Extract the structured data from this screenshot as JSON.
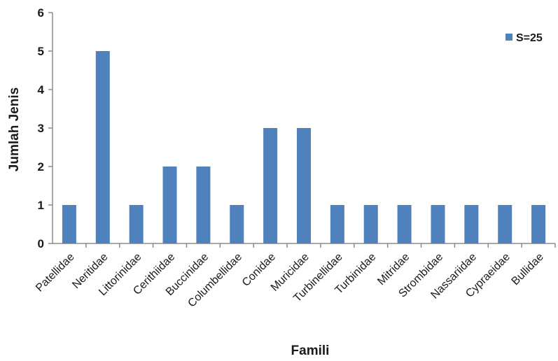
{
  "chart_data": {
    "type": "bar",
    "title": "",
    "xlabel": "Famili",
    "ylabel": "Jumlah Jenis",
    "ylim": [
      0,
      6
    ],
    "yticks": [
      "0",
      "1",
      "2",
      "3",
      "4",
      "5",
      "6"
    ],
    "grid": false,
    "legend_position": "top-right",
    "categories": [
      "Patellidae",
      "Neritidae",
      "Littorinidae",
      "Cerithiidae",
      "Buccinidae",
      "Columbellidae",
      "Conidae",
      "Muricidae",
      "Turbinellidae",
      "Turbinidae",
      "Mitridae",
      "Strombidae",
      "Nassariidae",
      "Cypraeidae",
      "Bullidae"
    ],
    "series": [
      {
        "name": "S=25",
        "color": "#4f81bd",
        "values": [
          1,
          5,
          1,
          2,
          2,
          1,
          3,
          3,
          1,
          1,
          1,
          1,
          1,
          1,
          1
        ]
      }
    ]
  }
}
